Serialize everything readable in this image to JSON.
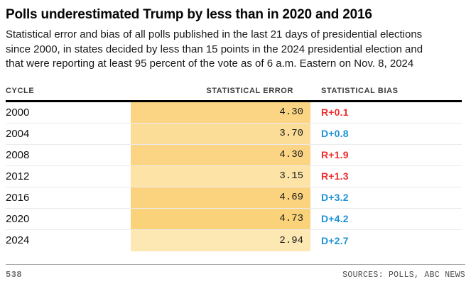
{
  "title": "Polls underestimated Trump by less than in 2020 and 2016",
  "subtitle": "Statistical error and bias of all polls published in the last 21 days of presidential elections since 2000, in states decided by less than 15 points in the 2024 presidential election and that were reporting at least 95 percent of the vote as of 6 a.m. Eastern on Nov. 8, 2024",
  "table": {
    "columns": {
      "cycle": "CYCLE",
      "error": "STATISTICAL ERROR",
      "bias": "STATISTICAL BIAS"
    },
    "rows": [
      {
        "cycle": "2000",
        "error": "4.30",
        "bias": "R+0.1",
        "bias_party": "R",
        "bar_color": "#FBD584"
      },
      {
        "cycle": "2004",
        "error": "3.70",
        "bias": "D+0.8",
        "bias_party": "D",
        "bar_color": "#FCDD98"
      },
      {
        "cycle": "2008",
        "error": "4.30",
        "bias": "R+1.9",
        "bias_party": "R",
        "bar_color": "#FBD584"
      },
      {
        "cycle": "2012",
        "error": "3.15",
        "bias": "R+1.3",
        "bias_party": "R",
        "bar_color": "#FDE3A6"
      },
      {
        "cycle": "2016",
        "error": "4.69",
        "bias": "D+3.2",
        "bias_party": "D",
        "bar_color": "#FBD37E"
      },
      {
        "cycle": "2020",
        "error": "4.73",
        "bias": "D+4.2",
        "bias_party": "D",
        "bar_color": "#FAD27A"
      },
      {
        "cycle": "2024",
        "error": "2.94",
        "bias": "D+2.7",
        "bias_party": "D",
        "bar_color": "#FDE7B2"
      }
    ]
  },
  "colors": {
    "republican_red": "#F02E2E",
    "democrat_blue": "#1D92D6",
    "bar_max_shade": "#FAD27A",
    "bar_min_shade": "#FDE7B2",
    "header_rule": "#000000",
    "row_divider": "#EBEBEB"
  },
  "footer": {
    "logo": "538",
    "sources": "SOURCES: POLLS, ABC NEWS"
  },
  "chart_data": {
    "type": "table",
    "title": "Polls underestimated Trump by less than in 2020 and 2016",
    "subtitle": "Statistical error and bias of all polls published in the last 21 days of presidential elections since 2000, in states decided by less than 15 points in the 2024 presidential election and that were reporting at least 95 percent of the vote as of 6 a.m. Eastern on Nov. 8, 2024",
    "columns": [
      "CYCLE",
      "STATISTICAL ERROR",
      "STATISTICAL BIAS"
    ],
    "categories": [
      "2000",
      "2004",
      "2008",
      "2012",
      "2016",
      "2020",
      "2024"
    ],
    "series": [
      {
        "name": "Statistical error",
        "values": [
          4.3,
          3.7,
          4.3,
          3.15,
          4.69,
          4.73,
          2.94
        ]
      },
      {
        "name": "Statistical bias",
        "values": [
          "R+0.1",
          "D+0.8",
          "R+1.9",
          "R+1.3",
          "D+3.2",
          "D+4.2",
          "D+2.7"
        ]
      }
    ],
    "layout_hints": {
      "error_cells_shaded": "orange heatmap, darker = larger error",
      "error_value_range_shown": [
        2.94,
        4.73
      ],
      "bias_color_coding": "R values red, D values blue",
      "grid": "horizontal row dividers only"
    }
  }
}
